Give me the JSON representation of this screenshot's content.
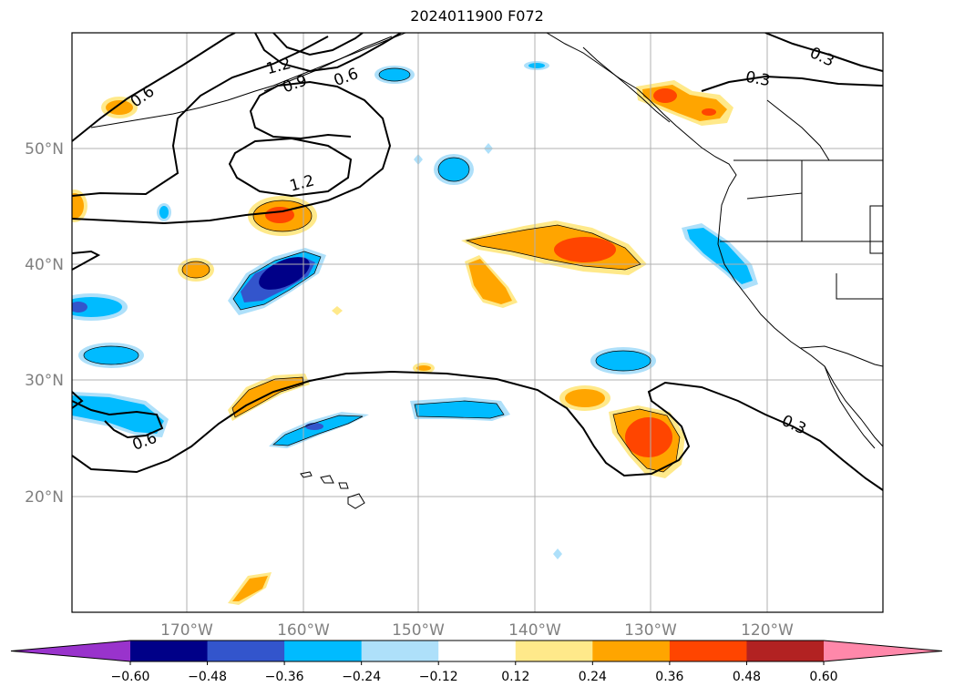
{
  "title": "2024011900 F072",
  "latitude_labels": [
    "50°N",
    "40°N",
    "30°N",
    "20°N"
  ],
  "longitude_labels": [
    "170°W",
    "160°W",
    "150°W",
    "140°W",
    "130°W",
    "120°W"
  ],
  "contour_labels": [
    "1.2",
    "0.9",
    "0.6",
    "0.6",
    "1.2",
    "0.3",
    "0.3",
    "0.6",
    "0.3"
  ],
  "colorbar": {
    "ticks": [
      "−0.60",
      "−0.48",
      "−0.36",
      "−0.24",
      "−0.12",
      "0.12",
      "0.24",
      "0.36",
      "0.48",
      "0.60"
    ],
    "colors": [
      "#9933cc",
      "#000088",
      "#3355cc",
      "#00bbff",
      "#aee0fa",
      "#ffffff",
      "#ffe98a",
      "#ffa500",
      "#ff4500",
      "#b22222",
      "#ff88aa"
    ]
  }
}
